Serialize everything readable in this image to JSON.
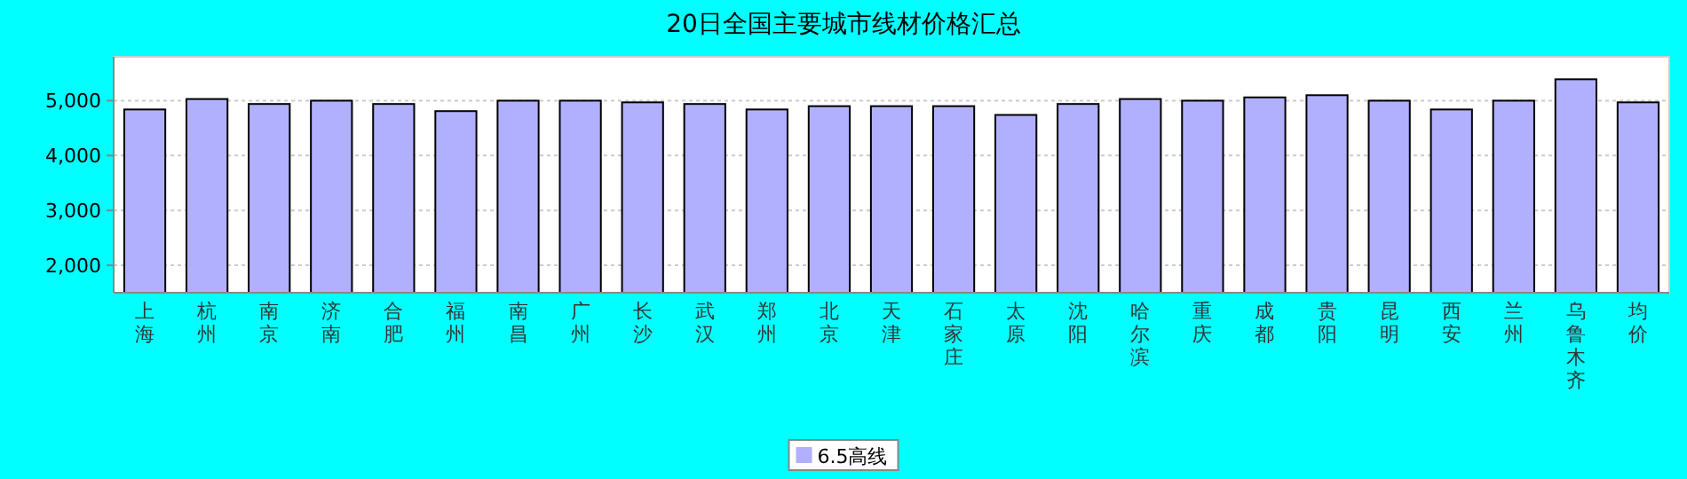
{
  "chart_data": {
    "type": "bar",
    "title": "20日全国主要城市线材价格汇总",
    "categories": [
      "上海",
      "杭州",
      "南京",
      "济南",
      "合肥",
      "福州",
      "南昌",
      "广州",
      "长沙",
      "武汉",
      "郑州",
      "北京",
      "天津",
      "石家庄",
      "太原",
      "沈阳",
      "哈尔滨",
      "重庆",
      "成都",
      "贵阳",
      "昆明",
      "西安",
      "兰州",
      "乌鲁木齐",
      "均价"
    ],
    "series": [
      {
        "name": "6.5高线",
        "color": "#b0b0ff",
        "values": [
          4840,
          5030,
          4940,
          5000,
          4940,
          4810,
          5000,
          5000,
          4970,
          4940,
          4840,
          4900,
          4900,
          4900,
          4740,
          4940,
          5030,
          5000,
          5060,
          5100,
          5000,
          4840,
          5000,
          5390,
          4970
        ]
      }
    ],
    "ylim": [
      1500,
      5800
    ],
    "yticks": [
      {
        "value": 2000,
        "label": "2,000"
      },
      {
        "value": 3000,
        "label": "3,000"
      },
      {
        "value": 4000,
        "label": "4,000"
      },
      {
        "value": 5000,
        "label": "5,000"
      }
    ],
    "grid": "y",
    "legend": "bottom"
  }
}
